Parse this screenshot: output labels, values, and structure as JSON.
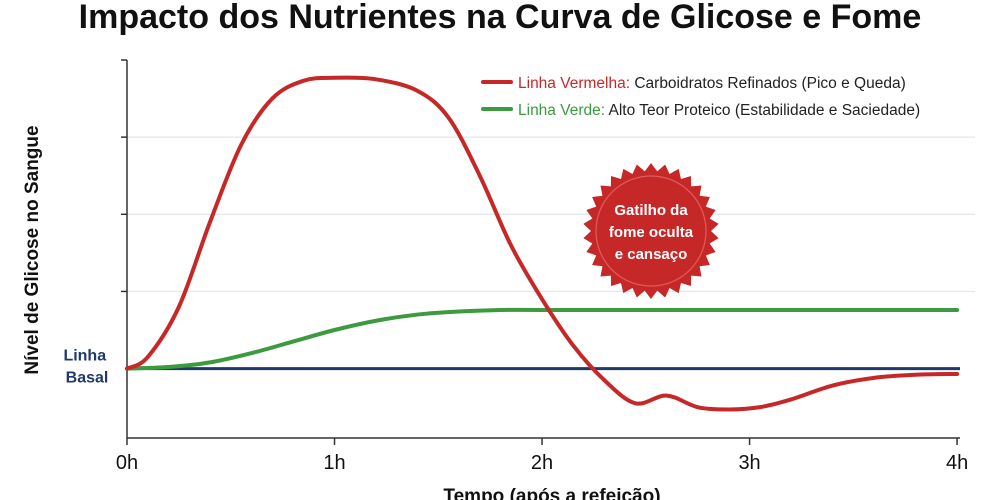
{
  "chart_data": {
    "type": "line",
    "title": "Impacto dos Nutrientes na Curva de Glicose e Fome",
    "xlabel": "Tempo (após a refeição)",
    "ylabel": "Nível de Glicose no Sangue",
    "x_tick_labels": [
      "0h",
      "1h",
      "2h",
      "3h",
      "4h"
    ],
    "xlim": [
      0,
      4
    ],
    "ylim": [
      -0.9,
      4.0
    ],
    "y_tick_values": [
      1,
      2,
      3
    ],
    "grid": "horizontal",
    "legend_position": "top-right",
    "baseline": {
      "label_line1": "Linha",
      "label_line2": "Basal",
      "value": 0,
      "color": "#1f3a68"
    },
    "series": [
      {
        "legend_name": "Linha Vermelha:",
        "legend_desc": "Carboidratos Refinados (Pico e Queda)",
        "color": "#c62828",
        "x": [
          0,
          0.1,
          0.25,
          0.4,
          0.55,
          0.7,
          0.85,
          1.0,
          1.2,
          1.4,
          1.55,
          1.7,
          1.85,
          2.0,
          2.15,
          2.3,
          2.45,
          2.6,
          2.75,
          2.9,
          3.05,
          3.2,
          3.4,
          3.6,
          3.8,
          4.0
        ],
        "y": [
          0,
          0.15,
          0.8,
          1.9,
          2.9,
          3.5,
          3.73,
          3.77,
          3.75,
          3.6,
          3.25,
          2.5,
          1.6,
          0.9,
          0.3,
          -0.15,
          -0.45,
          -0.35,
          -0.5,
          -0.53,
          -0.5,
          -0.4,
          -0.22,
          -0.12,
          -0.08,
          -0.07
        ]
      },
      {
        "legend_name": "Linha Verde:",
        "legend_desc": "Alto Teor Proteico (Estabilidade e Saciedade)",
        "color": "#3c9a3f",
        "x": [
          0,
          0.2,
          0.4,
          0.6,
          0.8,
          1.0,
          1.2,
          1.4,
          1.6,
          1.8,
          2.0,
          2.5,
          3.0,
          3.5,
          4.0
        ],
        "y": [
          0,
          0.02,
          0.08,
          0.2,
          0.35,
          0.5,
          0.62,
          0.7,
          0.74,
          0.76,
          0.76,
          0.76,
          0.76,
          0.76,
          0.76
        ]
      }
    ],
    "annotation": {
      "lines": [
        "Gatilho da",
        "fome oculta",
        "e cansaço"
      ],
      "color": "#c62828"
    }
  }
}
